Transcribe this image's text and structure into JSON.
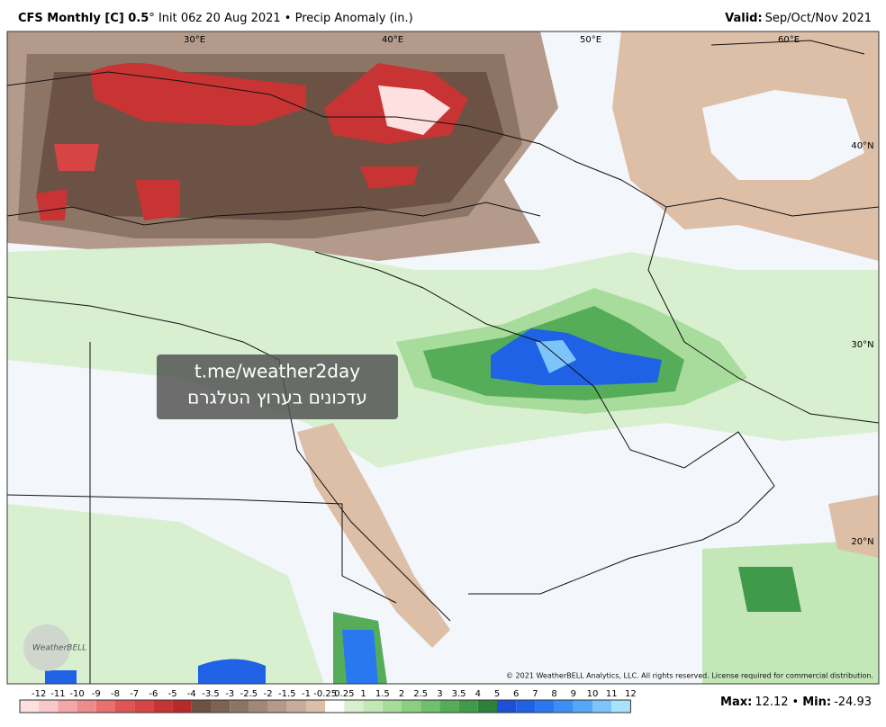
{
  "header": {
    "title_bold": "CFS Monthly [C] 0.5",
    "title_rest": "° Init 06z 20 Aug 2021 • Precip Anomaly (in.)",
    "valid_label": "Valid:",
    "valid_value": "Sep/Oct/Nov 2021"
  },
  "map": {
    "lon_labels": [
      "30°E",
      "40°E",
      "50°E",
      "60°E"
    ],
    "lat_labels": [
      "40°N",
      "30°N",
      "20°N"
    ],
    "watermark": [
      "t.me/weather2day",
      "עדכונים בערוץ הטלגרם"
    ],
    "logo": "WeatherBELL",
    "copyright": "© 2021 WeatherBELL Analytics, LLC. All rights reserved. License required for commercial distribution."
  },
  "legend": {
    "labels": [
      -12,
      -11,
      -10,
      -9,
      -8,
      -7,
      -6,
      -5,
      -4,
      -3.5,
      -3,
      -2.5,
      -2,
      -1.5,
      -1,
      -0.25,
      0.25,
      1,
      1.5,
      2,
      2.5,
      3,
      3.5,
      4,
      5,
      6,
      7,
      8,
      9,
      10,
      11,
      12
    ],
    "colors": [
      "#fde0e0",
      "#f9c8c8",
      "#f4a8a8",
      "#ee8c8c",
      "#e87070",
      "#df5555",
      "#d74444",
      "#c83434",
      "#b82a2a",
      "#6b5244",
      "#7c6355",
      "#8d7566",
      "#a08778",
      "#b39a8b",
      "#c6ad9c",
      "#ddbfa8",
      "#ffffff",
      "#d8f0d0",
      "#c3e7b7",
      "#a8dc9c",
      "#8ccf82",
      "#70c06b",
      "#55ad59",
      "#3f9a4a",
      "#2e7f3a",
      "#1e4fd8",
      "#1f62e6",
      "#2a78ef",
      "#3b8ff4",
      "#55a8f7",
      "#7cc4fa",
      "#a8e3fc"
    ]
  },
  "stats": {
    "max_label": "Max:",
    "max_value": 12.12,
    "separator": "•",
    "min_label": "Min:",
    "min_value": -24.93
  }
}
